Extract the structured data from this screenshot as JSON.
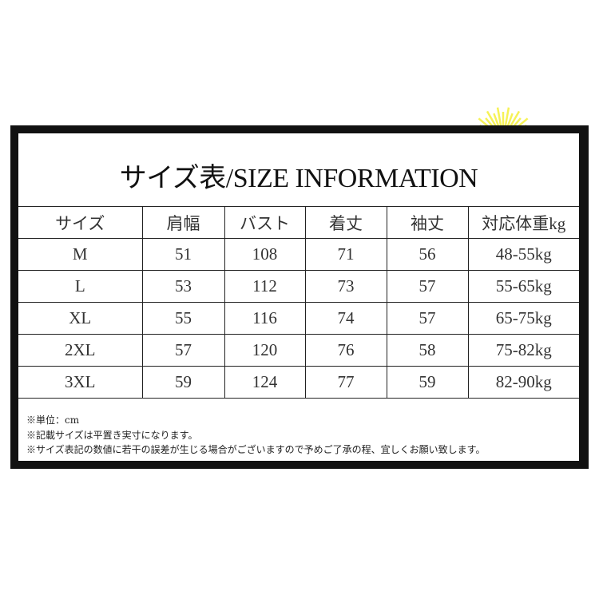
{
  "title": "サイズ表/SIZE INFORMATION",
  "table": {
    "headers": [
      "サイズ",
      "肩幅",
      "バスト",
      "着丈",
      "袖丈",
      "対応体重kg"
    ],
    "rows": [
      [
        "M",
        "51",
        "108",
        "71",
        "56",
        "48-55kg"
      ],
      [
        "L",
        "53",
        "112",
        "73",
        "57",
        "55-65kg"
      ],
      [
        "XL",
        "55",
        "116",
        "74",
        "57",
        "65-75kg"
      ],
      [
        "2XL",
        "57",
        "120",
        "76",
        "58",
        "75-82kg"
      ],
      [
        "3XL",
        "59",
        "124",
        "77",
        "59",
        "82-90kg"
      ]
    ]
  },
  "notes": [
    "※単位：cm",
    "※記載サイズは平置き実寸になります。",
    "※サイズ表記の数値に若干の誤差が生じる場合がございますので予めご了承の程、宜しくお願い致します。"
  ],
  "colors": {
    "frame": "#111111",
    "sun": "#f5f03a"
  }
}
